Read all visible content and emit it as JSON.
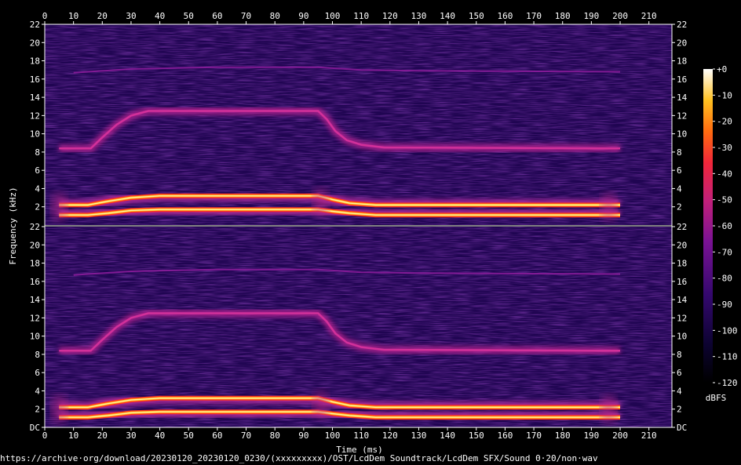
{
  "footer_url": "https://archive·org/download/20230120_20230120_0230/(xxxxxxxxx)/OST/LcdDem Soundtrack/LcdDem SFX/Sound 0·20/non·wav",
  "colors": {
    "background": "#000000",
    "spectrogram_base": "#200552",
    "track_glow": "#b02a9a",
    "track_core": "#fff0a0"
  },
  "chart_data": {
    "type": "heatmap",
    "subtype": "spectrogram",
    "xlabel": "Time (ms)",
    "ylabel": "Frequency (kHz)",
    "xlim": [
      0,
      218
    ],
    "ylim": [
      0,
      22
    ],
    "x_ticks": [
      "0",
      "10",
      "20",
      "30",
      "40",
      "50",
      "60",
      "70",
      "80",
      "90",
      "100",
      "110",
      "120",
      "130",
      "140",
      "150",
      "160",
      "170",
      "180",
      "190",
      "200",
      "210"
    ],
    "y_ticks": [
      "DC",
      "2",
      "4",
      "6",
      "8",
      "10",
      "12",
      "14",
      "16",
      "18",
      "20",
      "22"
    ],
    "colorbar": {
      "label": "dBFS",
      "range": [
        -120,
        0
      ],
      "ticks": [
        "+0",
        "-10",
        "-20",
        "-30",
        "-40",
        "-50",
        "-60",
        "-70",
        "-80",
        "-90",
        "-100",
        "-110",
        "-120"
      ]
    },
    "channels": [
      {
        "name": "",
        "tracks": [
          {
            "level": "strong",
            "points": [
              [
                5,
                1.1
              ],
              [
                15,
                1.1
              ],
              [
                22,
                1.3
              ],
              [
                30,
                1.6
              ],
              [
                40,
                1.7
              ],
              [
                95,
                1.7
              ],
              [
                100,
                1.5
              ],
              [
                106,
                1.3
              ],
              [
                115,
                1.1
              ],
              [
                200,
                1.1
              ]
            ]
          },
          {
            "level": "strong",
            "points": [
              [
                5,
                2.2
              ],
              [
                15,
                2.2
              ],
              [
                22,
                2.6
              ],
              [
                30,
                3.0
              ],
              [
                40,
                3.2
              ],
              [
                95,
                3.2
              ],
              [
                100,
                2.8
              ],
              [
                106,
                2.4
              ],
              [
                115,
                2.2
              ],
              [
                200,
                2.2
              ]
            ]
          },
          {
            "level": "medium",
            "points": [
              [
                5,
                8.4
              ],
              [
                16,
                8.4
              ],
              [
                20,
                9.6
              ],
              [
                25,
                11.0
              ],
              [
                30,
                12.0
              ],
              [
                36,
                12.5
              ],
              [
                95,
                12.5
              ],
              [
                98,
                11.6
              ],
              [
                101,
                10.3
              ],
              [
                105,
                9.3
              ],
              [
                110,
                8.8
              ],
              [
                118,
                8.5
              ],
              [
                200,
                8.4
              ]
            ]
          },
          {
            "level": "faint",
            "points": [
              [
                10,
                16.7
              ],
              [
                30,
                17.1
              ],
              [
                60,
                17.3
              ],
              [
                95,
                17.3
              ],
              [
                100,
                17.2
              ],
              [
                110,
                17.0
              ],
              [
                130,
                16.9
              ],
              [
                200,
                16.8
              ]
            ]
          }
        ]
      },
      {
        "name": "",
        "tracks": [
          {
            "level": "strong",
            "points": [
              [
                5,
                1.1
              ],
              [
                15,
                1.1
              ],
              [
                22,
                1.3
              ],
              [
                30,
                1.6
              ],
              [
                40,
                1.7
              ],
              [
                95,
                1.7
              ],
              [
                100,
                1.5
              ],
              [
                106,
                1.3
              ],
              [
                115,
                1.1
              ],
              [
                200,
                1.1
              ]
            ]
          },
          {
            "level": "strong",
            "points": [
              [
                5,
                2.2
              ],
              [
                15,
                2.2
              ],
              [
                22,
                2.6
              ],
              [
                30,
                3.0
              ],
              [
                40,
                3.2
              ],
              [
                95,
                3.2
              ],
              [
                100,
                2.8
              ],
              [
                106,
                2.4
              ],
              [
                115,
                2.2
              ],
              [
                200,
                2.2
              ]
            ]
          },
          {
            "level": "medium",
            "points": [
              [
                5,
                8.4
              ],
              [
                16,
                8.4
              ],
              [
                20,
                9.6
              ],
              [
                25,
                11.0
              ],
              [
                30,
                12.0
              ],
              [
                36,
                12.5
              ],
              [
                95,
                12.5
              ],
              [
                98,
                11.6
              ],
              [
                101,
                10.3
              ],
              [
                105,
                9.3
              ],
              [
                110,
                8.8
              ],
              [
                118,
                8.5
              ],
              [
                200,
                8.4
              ]
            ]
          },
          {
            "level": "faint",
            "points": [
              [
                10,
                16.7
              ],
              [
                30,
                17.1
              ],
              [
                60,
                17.3
              ],
              [
                95,
                17.3
              ],
              [
                100,
                17.2
              ],
              [
                110,
                17.0
              ],
              [
                130,
                16.9
              ],
              [
                200,
                16.8
              ]
            ]
          }
        ]
      }
    ],
    "bursts": [
      {
        "x": 5,
        "y": 2.0,
        "label": ""
      },
      {
        "x": 96,
        "y": 2.5,
        "label": ""
      },
      {
        "x": 196,
        "y": 2.0,
        "label": ""
      }
    ]
  }
}
